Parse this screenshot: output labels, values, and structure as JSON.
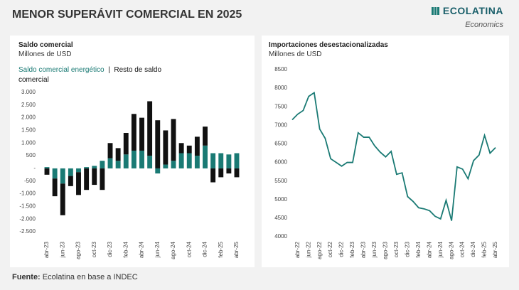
{
  "title": "MENOR SUPERÁVIT COMERCIAL EN 2025",
  "logo": {
    "name": "ECOLATINA",
    "tagline": "Economics"
  },
  "footer": {
    "label": "Fuente:",
    "text": "Ecolatina en base a INDEC"
  },
  "chart_data": [
    {
      "type": "bar",
      "stacked": true,
      "title": "Saldo comercial",
      "subtitle": "Millones de USD",
      "categories": [
        "abr-23",
        null,
        "jun-23",
        null,
        "ago-23",
        null,
        "oct-23",
        null,
        "dic-23",
        null,
        "feb-24",
        null,
        "abr-24",
        null,
        "jun-24",
        null,
        "ago-24",
        null,
        "oct-24",
        null,
        "dic-24",
        null,
        "feb-25",
        null,
        "abr-25"
      ],
      "series": [
        {
          "name": "Saldo comercial energético",
          "color": "#1a7a74",
          "values": [
            50,
            -400,
            -600,
            -300,
            -150,
            50,
            100,
            300,
            400,
            300,
            550,
            700,
            700,
            500,
            -200,
            150,
            300,
            600,
            600,
            500,
            900,
            600,
            600,
            550,
            600
          ]
        },
        {
          "name": "Resto de saldo comercial",
          "color": "#111111",
          "values": [
            -250,
            -700,
            -1250,
            -400,
            -900,
            -850,
            -650,
            -850,
            600,
            500,
            850,
            1450,
            1300,
            2150,
            1900,
            1350,
            1650,
            400,
            300,
            750,
            750,
            -550,
            -350,
            -200,
            -350
          ]
        }
      ],
      "ylim": [
        -2500,
        3000
      ],
      "yticks": [
        {
          "value": 3000,
          "label": "3.000"
        },
        {
          "value": 2500,
          "label": "2.500"
        },
        {
          "value": 2000,
          "label": "2.000"
        },
        {
          "value": 1500,
          "label": "1.500"
        },
        {
          "value": 1000,
          "label": "1.000"
        },
        500,
        {
          "value": 0,
          "label": "-"
        },
        -500,
        {
          "value": -1000,
          "label": "-1.000"
        },
        {
          "value": -1500,
          "label": "-1.500"
        },
        {
          "value": -2000,
          "label": "-2.000"
        },
        {
          "value": -2500,
          "label": "-2.500"
        }
      ]
    },
    {
      "type": "line",
      "title": "Importaciones desestacionalizadas",
      "subtitle": "Millones de USD",
      "color": "#1a7a74",
      "categories": [
        null,
        "abr-22",
        null,
        "jun-22",
        null,
        "ago-22",
        null,
        "oct-22",
        null,
        "dic-22",
        null,
        "feb-23",
        null,
        "abr-23",
        null,
        "jun-23",
        null,
        "ago-23",
        null,
        "oct-23",
        null,
        "dic-23",
        null,
        "feb-24",
        null,
        "abr-24",
        null,
        "jun-24",
        null,
        "ago-24",
        null,
        "oct-24",
        null,
        "dic-24",
        null,
        "feb-25",
        null,
        "abr-25"
      ],
      "values": [
        7150,
        7300,
        7400,
        7780,
        7880,
        6900,
        6650,
        6100,
        6000,
        5900,
        6000,
        6000,
        6800,
        6680,
        6680,
        6450,
        6280,
        6150,
        6300,
        5680,
        5720,
        5080,
        4950,
        4780,
        4750,
        4700,
        4550,
        4480,
        4980,
        4430,
        5880,
        5820,
        5560,
        6050,
        6200,
        6730,
        6250,
        6400
      ],
      "ylim": [
        4000,
        8500
      ],
      "yticks": [
        4000,
        4500,
        5000,
        5500,
        6000,
        6500,
        7000,
        7500,
        8000,
        8500
      ]
    }
  ]
}
